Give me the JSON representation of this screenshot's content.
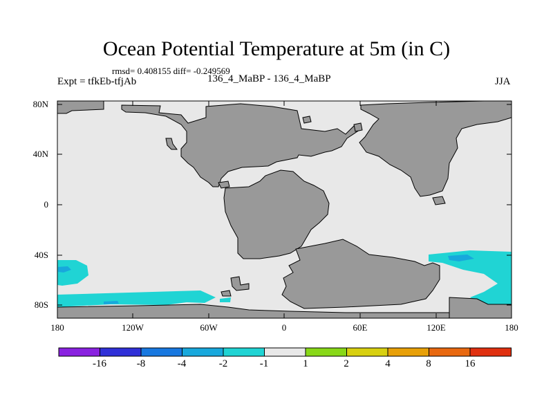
{
  "title": "Ocean Potential Temperature at 5m (in C)",
  "stats_line": "rmsd= 0.408155 diff= -0.249569",
  "left_label": "Expt = tfkEb-tfjAb",
  "center_label": "136_4_MaBP - 136_4_MaBP",
  "right_label": "JJA",
  "lat_labels": [
    "80N",
    "40N",
    "0",
    "40S",
    "80S"
  ],
  "lon_labels": [
    "180",
    "120W",
    "60W",
    "0",
    "60E",
    "120E",
    "180"
  ],
  "colorbar": {
    "labels": [
      "-16",
      "-8",
      "-4",
      "-2",
      "-1",
      "1",
      "2",
      "4",
      "8",
      "16"
    ],
    "colors": [
      "#8a22e0",
      "#3030d8",
      "#1878e0",
      "#18a8dc",
      "#20d4d4",
      "#e8e8e8",
      "#88d818",
      "#d8d010",
      "#e8a008",
      "#e86810",
      "#e03010"
    ]
  },
  "map_colors": {
    "ocean": "#e8e8e8",
    "land": "#999999",
    "cold_anomaly": "#20d4d4",
    "cold_core": "#18a8dc"
  }
}
